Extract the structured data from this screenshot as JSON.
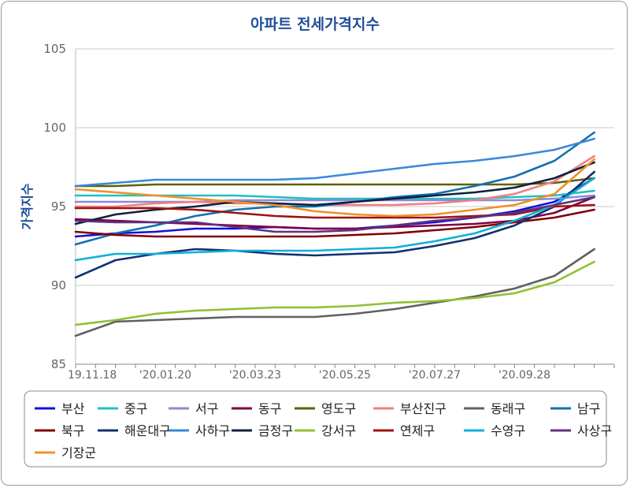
{
  "chart_data": {
    "type": "line",
    "title": "아파트 전세가격지수",
    "ylabel": "가격지수",
    "xlabel": "",
    "ylim": [
      85,
      105
    ],
    "yticks": [
      85,
      90,
      95,
      100,
      105
    ],
    "x_tick_labels": [
      "19.11.18",
      "'20.01.20",
      "'20.03.23",
      "'20.05.25",
      "'20.07.27",
      "'20.09.28"
    ],
    "grid": "horizontal",
    "legend_placement": "bottom",
    "x": [
      0,
      4,
      8,
      12,
      16,
      20,
      24,
      28,
      32,
      36,
      40,
      44,
      48,
      52
    ],
    "series": [
      {
        "name": "부산",
        "color": "#1010dd",
        "values": [
          93.1,
          93.3,
          93.4,
          93.6,
          93.6,
          93.7,
          93.6,
          93.6,
          93.8,
          94.0,
          94.3,
          94.7,
          95.3,
          96.8
        ]
      },
      {
        "name": "중구",
        "color": "#20c0c0",
        "values": [
          95.7,
          95.7,
          95.7,
          95.7,
          95.7,
          95.6,
          95.5,
          95.5,
          95.5,
          95.5,
          95.5,
          95.6,
          95.7,
          96.0
        ]
      },
      {
        "name": "서구",
        "color": "#8a8ad8",
        "values": [
          95.3,
          95.3,
          95.3,
          95.3,
          95.4,
          95.4,
          95.4,
          95.4,
          95.4,
          95.4,
          95.4,
          95.4,
          95.5,
          95.7
        ]
      },
      {
        "name": "동구",
        "color": "#800040",
        "values": [
          94.2,
          94.1,
          94.0,
          93.9,
          93.8,
          93.7,
          93.6,
          93.6,
          93.7,
          93.8,
          93.9,
          94.1,
          94.6,
          95.6
        ]
      },
      {
        "name": "영도구",
        "color": "#606000",
        "values": [
          96.3,
          96.3,
          96.4,
          96.4,
          96.4,
          96.4,
          96.4,
          96.4,
          96.4,
          96.4,
          96.4,
          96.4,
          96.5,
          96.8
        ]
      },
      {
        "name": "부산진구",
        "color": "#f08080",
        "values": [
          95.0,
          95.0,
          95.2,
          95.3,
          95.2,
          95.2,
          95.1,
          95.1,
          95.1,
          95.2,
          95.4,
          95.8,
          96.6,
          98.2
        ]
      },
      {
        "name": "동래구",
        "color": "#606060",
        "values": [
          86.8,
          87.7,
          87.8,
          87.9,
          88.0,
          88.0,
          88.0,
          88.2,
          88.5,
          88.9,
          89.3,
          89.8,
          90.6,
          92.3
        ]
      },
      {
        "name": "남구",
        "color": "#1070b0",
        "values": [
          92.6,
          93.3,
          93.8,
          94.4,
          94.8,
          95.0,
          95.0,
          95.3,
          95.6,
          95.8,
          96.3,
          96.9,
          97.9,
          99.7
        ]
      },
      {
        "name": "북구",
        "color": "#800000",
        "values": [
          93.4,
          93.2,
          93.1,
          93.1,
          93.1,
          93.1,
          93.1,
          93.2,
          93.3,
          93.5,
          93.7,
          94.0,
          94.3,
          94.8
        ]
      },
      {
        "name": "해운대구",
        "color": "#103070",
        "values": [
          90.5,
          91.6,
          92.0,
          92.3,
          92.2,
          92.0,
          91.9,
          92.0,
          92.1,
          92.5,
          93.0,
          93.8,
          95.0,
          97.2
        ]
      },
      {
        "name": "사하구",
        "color": "#3a88d8",
        "values": [
          96.3,
          96.5,
          96.7,
          96.7,
          96.7,
          96.7,
          96.8,
          97.1,
          97.4,
          97.7,
          97.9,
          98.2,
          98.6,
          99.3
        ]
      },
      {
        "name": "금정구",
        "color": "#102040",
        "values": [
          93.9,
          94.5,
          94.8,
          95.0,
          95.3,
          95.2,
          95.1,
          95.3,
          95.5,
          95.7,
          95.9,
          96.2,
          96.8,
          97.8
        ]
      },
      {
        "name": "강서구",
        "color": "#90c030",
        "values": [
          87.5,
          87.8,
          88.2,
          88.4,
          88.5,
          88.6,
          88.6,
          88.7,
          88.9,
          89.0,
          89.2,
          89.5,
          90.2,
          91.5
        ]
      },
      {
        "name": "연제구",
        "color": "#a01010",
        "values": [
          94.9,
          94.9,
          94.9,
          94.8,
          94.6,
          94.4,
          94.3,
          94.3,
          94.3,
          94.3,
          94.4,
          94.5,
          95.0,
          95.1
        ]
      },
      {
        "name": "수영구",
        "color": "#10b0d8",
        "values": [
          91.6,
          92.0,
          92.0,
          92.1,
          92.2,
          92.2,
          92.2,
          92.3,
          92.4,
          92.8,
          93.3,
          94.1,
          95.1,
          96.8
        ]
      },
      {
        "name": "사상구",
        "color": "#603080",
        "values": [
          94.1,
          94.0,
          94.0,
          94.0,
          93.7,
          93.4,
          93.4,
          93.5,
          93.8,
          94.1,
          94.3,
          94.6,
          95.1,
          95.6
        ]
      },
      {
        "name": "기장군",
        "color": "#f0902a",
        "values": [
          96.1,
          95.9,
          95.7,
          95.5,
          95.3,
          95.1,
          94.7,
          94.5,
          94.4,
          94.5,
          94.8,
          95.1,
          95.8,
          98.0
        ]
      }
    ]
  }
}
